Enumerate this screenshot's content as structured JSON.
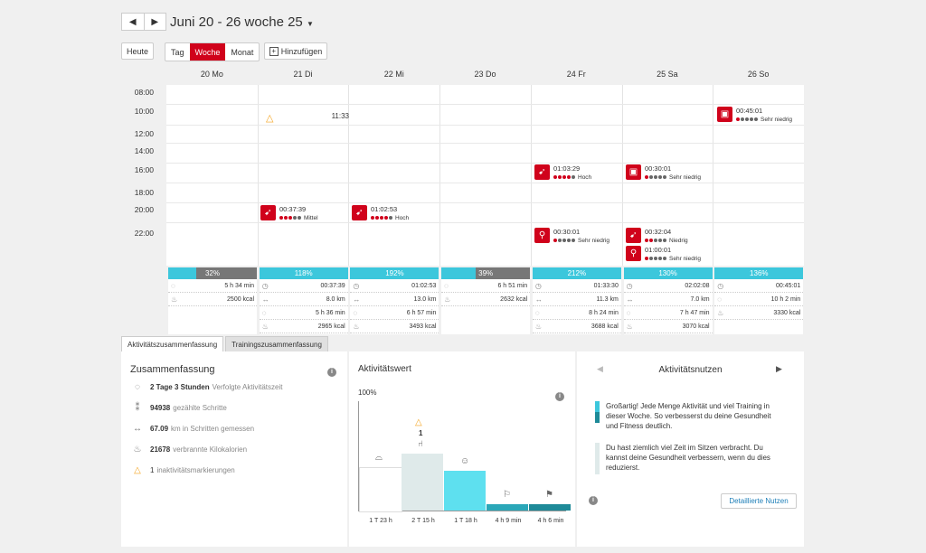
{
  "header": {
    "prev": "◀",
    "next": "▶",
    "range": "Juni 20 - 26 woche 25",
    "today": "Heute",
    "views": [
      "Tag",
      "Woche",
      "Monat"
    ],
    "add": "Hinzufügen"
  },
  "days": [
    "20 Mo",
    "21 Di",
    "22 Mi",
    "23 Do",
    "24 Fr",
    "25 Sa",
    "26 So"
  ],
  "times": [
    "08:00",
    "10:00",
    "12:00",
    "14:00",
    "16:00",
    "18:00",
    "20:00",
    "22:00"
  ],
  "events": [
    {
      "type": "inactivity",
      "time": "11:33"
    },
    {
      "duration": "00:45:01",
      "level": "Sehr niedrig",
      "icon": "strength-icon"
    },
    {
      "duration": "01:03:29",
      "level": "Hoch",
      "icon": "run-icon"
    },
    {
      "duration": "00:30:01",
      "level": "Sehr niedrig",
      "icon": "strength-icon"
    },
    {
      "duration": "00:37:39",
      "level": "Mittel",
      "icon": "run-icon"
    },
    {
      "duration": "01:02:53",
      "level": "Hoch",
      "icon": "run-icon"
    },
    {
      "duration": "00:30:01",
      "level": "Sehr niedrig",
      "icon": "bike-icon"
    },
    {
      "duration": "00:32:04",
      "level": "Niedrig",
      "icon": "run-icon"
    },
    {
      "duration": "01:00:01",
      "level": "Sehr niedrig",
      "icon": "bike-icon"
    }
  ],
  "day_summaries": [
    {
      "pct": "32%",
      "fill": 0.32,
      "rows": [
        [
          "5 h 34 min"
        ],
        [
          "2500 kcal"
        ]
      ]
    },
    {
      "pct": "118%",
      "fill": 1.0,
      "rows": [
        [
          "00:37:39"
        ],
        [
          "8.0 km"
        ],
        [
          "5 h 36 min"
        ],
        [
          "2965 kcal"
        ]
      ]
    },
    {
      "pct": "192%",
      "fill": 1.0,
      "rows": [
        [
          "01:02:53"
        ],
        [
          "13.0 km"
        ],
        [
          "6 h 57 min"
        ],
        [
          "3493 kcal"
        ]
      ]
    },
    {
      "pct": "39%",
      "fill": 0.39,
      "rows": [
        [
          "6 h 51 min"
        ],
        [
          "2632 kcal"
        ]
      ]
    },
    {
      "pct": "212%",
      "fill": 1.0,
      "rows": [
        [
          "01:33:30"
        ],
        [
          "11.3 km"
        ],
        [
          "8 h 24 min"
        ],
        [
          "3688 kcal"
        ]
      ]
    },
    {
      "pct": "130%",
      "fill": 1.0,
      "rows": [
        [
          "02:02:08"
        ],
        [
          "7.0 km"
        ],
        [
          "7 h 47 min"
        ],
        [
          "3070 kcal"
        ]
      ]
    },
    {
      "pct": "136%",
      "fill": 1.0,
      "rows": [
        [
          "00:45:01"
        ],
        [
          "10 h 2 min"
        ],
        [
          "3330 kcal"
        ]
      ]
    }
  ],
  "tabs": [
    "Aktivitätszusammenfassung",
    "Trainingszusammenfassung"
  ],
  "summary": {
    "title": "Zusammenfassung",
    "rows": [
      {
        "value": "2 Tage 3 Stunden",
        "label": "Verfolgte Aktivitätszeit"
      },
      {
        "value": "94938",
        "label": "gezählte Schritte"
      },
      {
        "value": "67.09",
        "label": "km in Schritten gemessen"
      },
      {
        "value": "21678",
        "label": "verbrannte Kilokalorien"
      },
      {
        "value": "1",
        "label": "inaktivitätsmarkierungen"
      }
    ]
  },
  "activity": {
    "title": "Aktivitätswert",
    "ymax_label": "100%",
    "inactivity_count": "1",
    "bars": [
      "1 T 23 h",
      "2 T 15 h",
      "1 T 18 h",
      "4 h 9 min",
      "4 h 6 min"
    ],
    "bar_levels": [
      0.4,
      0.52,
      0.36,
      0.06,
      0.06
    ],
    "bar_colors": [
      "#ffffff",
      "#dfeaea",
      "#5ee0ef",
      "#2aa7b8",
      "#1e8a98"
    ]
  },
  "benefit": {
    "title": "Aktivitätsnutzen",
    "text1": [
      "Großartig! Jede Menge Aktivität und viel Training in",
      "dieser Woche. So verbesserst du deine Gesundheit",
      "und Fitness deutlich."
    ],
    "text2": [
      "Du hast ziemlich viel Zeit im Sitzen verbracht. Du",
      "kannst deine Gesundheit verbessern, wenn du dies",
      "reduzierst."
    ],
    "button": "Detaillierte Nutzen",
    "prev": "◀",
    "next": "▶"
  },
  "colors": {
    "accent": "#d0021b",
    "cyan": "#3cc7dc",
    "teal": "#1e8a98"
  }
}
